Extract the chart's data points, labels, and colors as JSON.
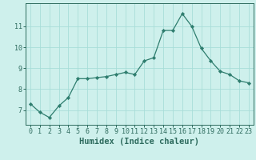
{
  "x": [
    0,
    1,
    2,
    3,
    4,
    5,
    6,
    7,
    8,
    9,
    10,
    11,
    12,
    13,
    14,
    15,
    16,
    17,
    18,
    19,
    20,
    21,
    22,
    23
  ],
  "y": [
    7.3,
    6.9,
    6.65,
    7.2,
    7.6,
    8.5,
    8.5,
    8.55,
    8.6,
    8.7,
    8.8,
    8.7,
    9.35,
    9.5,
    10.8,
    10.8,
    11.6,
    11.0,
    9.95,
    9.35,
    8.85,
    8.7,
    8.4,
    8.3
  ],
  "line_color": "#2e7d6e",
  "marker": "D",
  "marker_size": 2.2,
  "bg_color": "#cef0ec",
  "grid_color": "#a8ddd8",
  "xlabel": "Humidex (Indice chaleur)",
  "xlim": [
    -0.5,
    23.5
  ],
  "ylim": [
    6.3,
    12.1
  ],
  "yticks": [
    7,
    8,
    9,
    10,
    11
  ],
  "xticks": [
    0,
    1,
    2,
    3,
    4,
    5,
    6,
    7,
    8,
    9,
    10,
    11,
    12,
    13,
    14,
    15,
    16,
    17,
    18,
    19,
    20,
    21,
    22,
    23
  ],
  "tick_color": "#2e6b5e",
  "axis_color": "#2e6b5e",
  "label_fontsize": 7.5,
  "tick_fontsize": 6.0
}
